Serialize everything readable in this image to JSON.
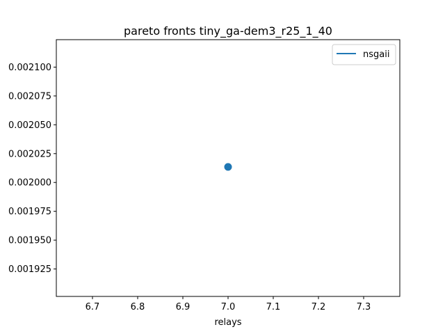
{
  "chart_data": {
    "type": "scatter",
    "title": "pareto fronts tiny_ga-dem3_r25_1_40",
    "xlabel": "relays",
    "ylabel": "",
    "xlim": [
      6.62,
      7.38
    ],
    "ylim": [
      0.0019012,
      0.0021238
    ],
    "xticks": [
      6.7,
      6.8,
      6.9,
      7.0,
      7.1,
      7.2,
      7.3
    ],
    "xtick_labels": [
      "6.7",
      "6.8",
      "6.9",
      "7.0",
      "7.1",
      "7.2",
      "7.3"
    ],
    "yticks": [
      0.001925,
      0.00195,
      0.001975,
      0.002,
      0.002025,
      0.00205,
      0.002075,
      0.0021
    ],
    "ytick_labels": [
      "0.001925",
      "0.001950",
      "0.001975",
      "0.002000",
      "0.002025",
      "0.002050",
      "0.002075",
      "0.002100"
    ],
    "grid": false,
    "legend_position": "top-right",
    "series": [
      {
        "name": "nsgaii",
        "color": "#1f77b4",
        "points": [
          {
            "x": 7.0,
            "y": 0.0020135
          }
        ]
      }
    ]
  }
}
